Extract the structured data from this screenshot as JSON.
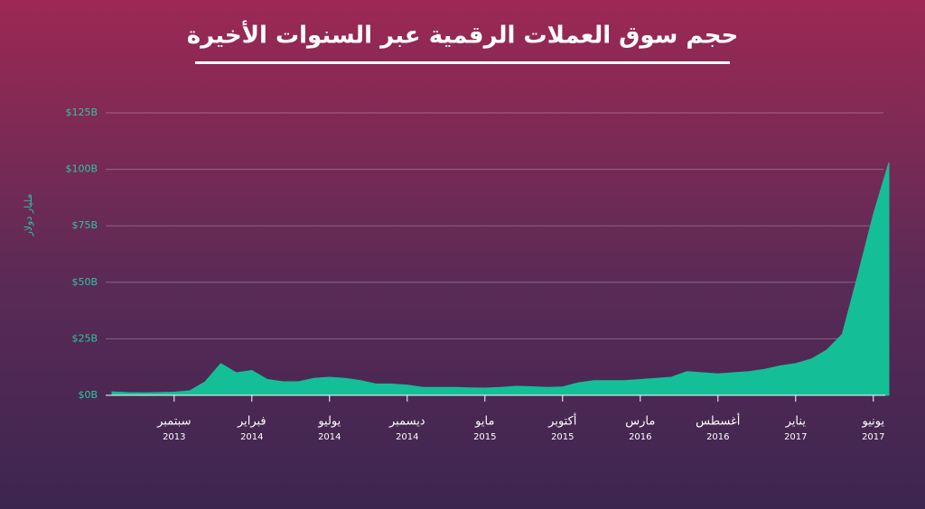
{
  "chart_data": {
    "type": "area",
    "title": "حجم سوق العملات الرقمية عبر السنوات الأخيرة",
    "y_label": "مليار دولار",
    "categories": [
      null,
      null,
      null,
      null,
      {
        "month": "سبتمبر",
        "year": "2013"
      },
      null,
      null,
      null,
      null,
      {
        "month": "فبراير",
        "year": "2014"
      },
      null,
      null,
      null,
      null,
      {
        "month": "يوليو",
        "year": "2014"
      },
      null,
      null,
      null,
      null,
      {
        "month": "ديسمبر",
        "year": "2014"
      },
      null,
      null,
      null,
      null,
      {
        "month": "مايو",
        "year": "2015"
      },
      null,
      null,
      null,
      null,
      {
        "month": "أكتوبر",
        "year": "2015"
      },
      null,
      null,
      null,
      null,
      {
        "month": "مارس",
        "year": "2016"
      },
      null,
      null,
      null,
      null,
      {
        "month": "أغسطس",
        "year": "2016"
      },
      null,
      null,
      null,
      null,
      {
        "month": "يناير",
        "year": "2017"
      },
      null,
      null,
      null,
      null,
      {
        "month": "يونيو",
        "year": "2017"
      },
      null
    ],
    "values": [
      1.5,
      1.2,
      1.1,
      1.2,
      1.4,
      2,
      6,
      14,
      10,
      11,
      7,
      6,
      6,
      7.5,
      8,
      7.5,
      6.5,
      5,
      5,
      4.5,
      3.5,
      3.5,
      3.5,
      3.3,
      3.2,
      3.5,
      4,
      3.8,
      3.5,
      3.7,
      5.5,
      6.5,
      6.5,
      6.5,
      7,
      7.5,
      8,
      10.5,
      10,
      9.5,
      10,
      10.5,
      11.5,
      13,
      14,
      16,
      20,
      27,
      53,
      80,
      103
    ],
    "color": "#14bf98",
    "ylim": [
      0,
      125
    ],
    "yticks": [
      {
        "value": 0,
        "label": "$0B"
      },
      {
        "value": 25,
        "label": "$25B"
      },
      {
        "value": 50,
        "label": "$50B"
      },
      {
        "value": 75,
        "label": "$75B"
      },
      {
        "value": 100,
        "label": "$100B"
      },
      {
        "value": 125,
        "label": "$125B"
      }
    ],
    "grid": true
  }
}
